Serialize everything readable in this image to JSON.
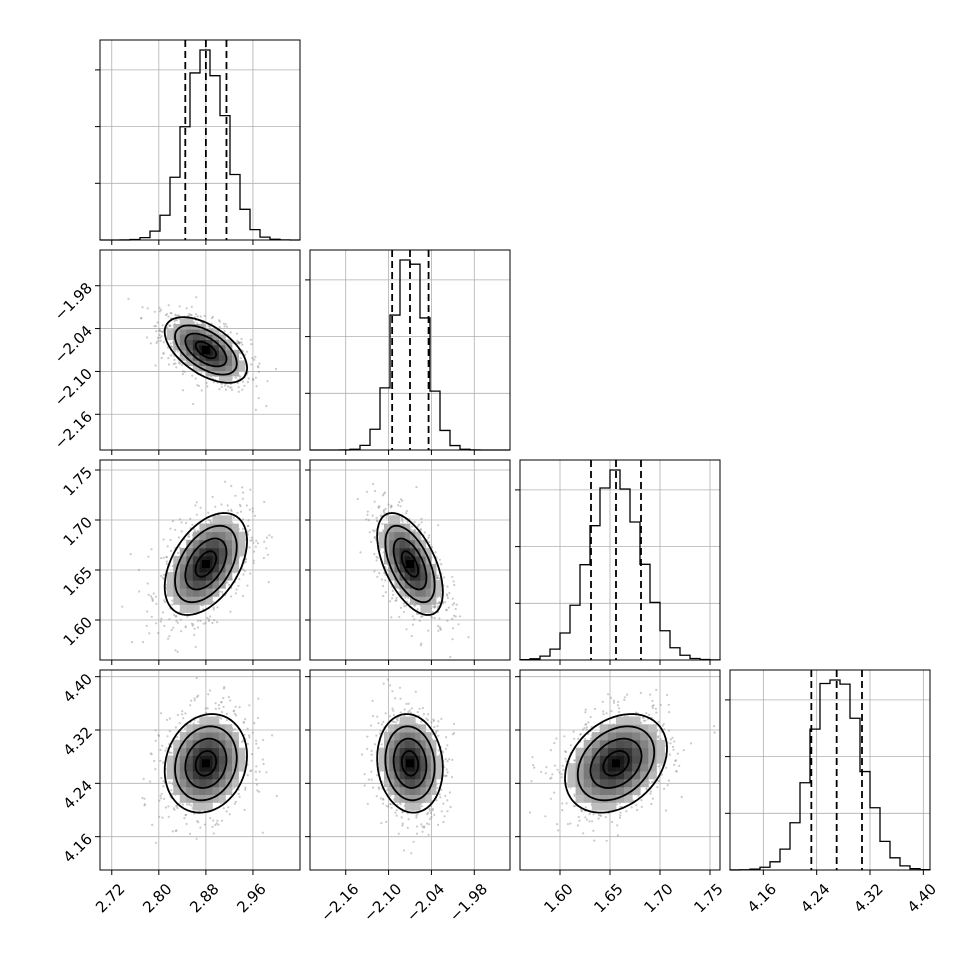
{
  "chart_data": {
    "type": "corner",
    "grid": true,
    "parameters": [
      {
        "index": 0,
        "range": [
          2.7,
          3.04
        ],
        "ticks": [
          "2.72",
          "2.80",
          "2.88",
          "2.96"
        ],
        "center": 2.88,
        "sigma": 0.035,
        "quantiles": [
          2.845,
          2.88,
          2.915
        ]
      },
      {
        "index": 1,
        "range": [
          -2.21,
          -1.93
        ],
        "ticks": [
          "−2.16",
          "−2.10",
          "−2.04",
          "−1.98"
        ],
        "center": -2.07,
        "sigma": 0.023,
        "quantiles": [
          -2.095,
          -2.07,
          -2.044
        ]
      },
      {
        "index": 2,
        "range": [
          1.56,
          1.76
        ],
        "ticks": [
          "1.60",
          "1.65",
          "1.70",
          "1.75"
        ],
        "center": 1.656,
        "sigma": 0.0255,
        "quantiles": [
          1.631,
          1.656,
          1.681
        ]
      },
      {
        "index": 3,
        "range": [
          4.11,
          4.41
        ],
        "ticks": [
          "4.16",
          "4.24",
          "4.32",
          "4.40"
        ],
        "center": 4.27,
        "sigma": 0.037,
        "quantiles": [
          4.232,
          4.27,
          4.308
        ]
      }
    ],
    "correlations": [
      [
        1.0,
        -0.55,
        0.45,
        0.15
      ],
      [
        -0.55,
        1.0,
        -0.55,
        -0.1
      ],
      [
        0.45,
        -0.55,
        1.0,
        0.3
      ],
      [
        0.15,
        -0.1,
        0.3,
        1.0
      ]
    ],
    "contour_levels_sigma": [
      0.5,
      1.0,
      1.5,
      2.0
    ],
    "histogram_bins": 20
  }
}
